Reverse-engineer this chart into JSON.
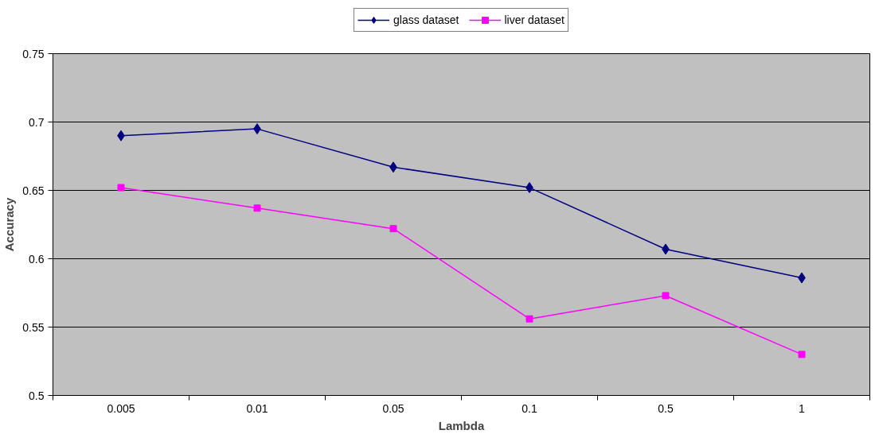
{
  "chart_data": {
    "type": "line",
    "xlabel": "Lambda",
    "ylabel": "Accuracy",
    "categories": [
      "0.005",
      "0.01",
      "0.05",
      "0.1",
      "0.5",
      "1"
    ],
    "series": [
      {
        "name": "glass dataset",
        "color": "#000080",
        "marker": "diamond",
        "values": [
          0.69,
          0.695,
          0.667,
          0.652,
          0.607,
          0.586
        ]
      },
      {
        "name": "liver dataset",
        "color": "#ff00ff",
        "marker": "square",
        "values": [
          0.652,
          0.637,
          0.622,
          0.556,
          0.573,
          0.53
        ]
      }
    ],
    "ylim": [
      0.5,
      0.75
    ],
    "yticks": [
      0.5,
      0.55,
      0.6,
      0.65,
      0.7,
      0.75
    ],
    "grid": "y",
    "legend": "top"
  }
}
